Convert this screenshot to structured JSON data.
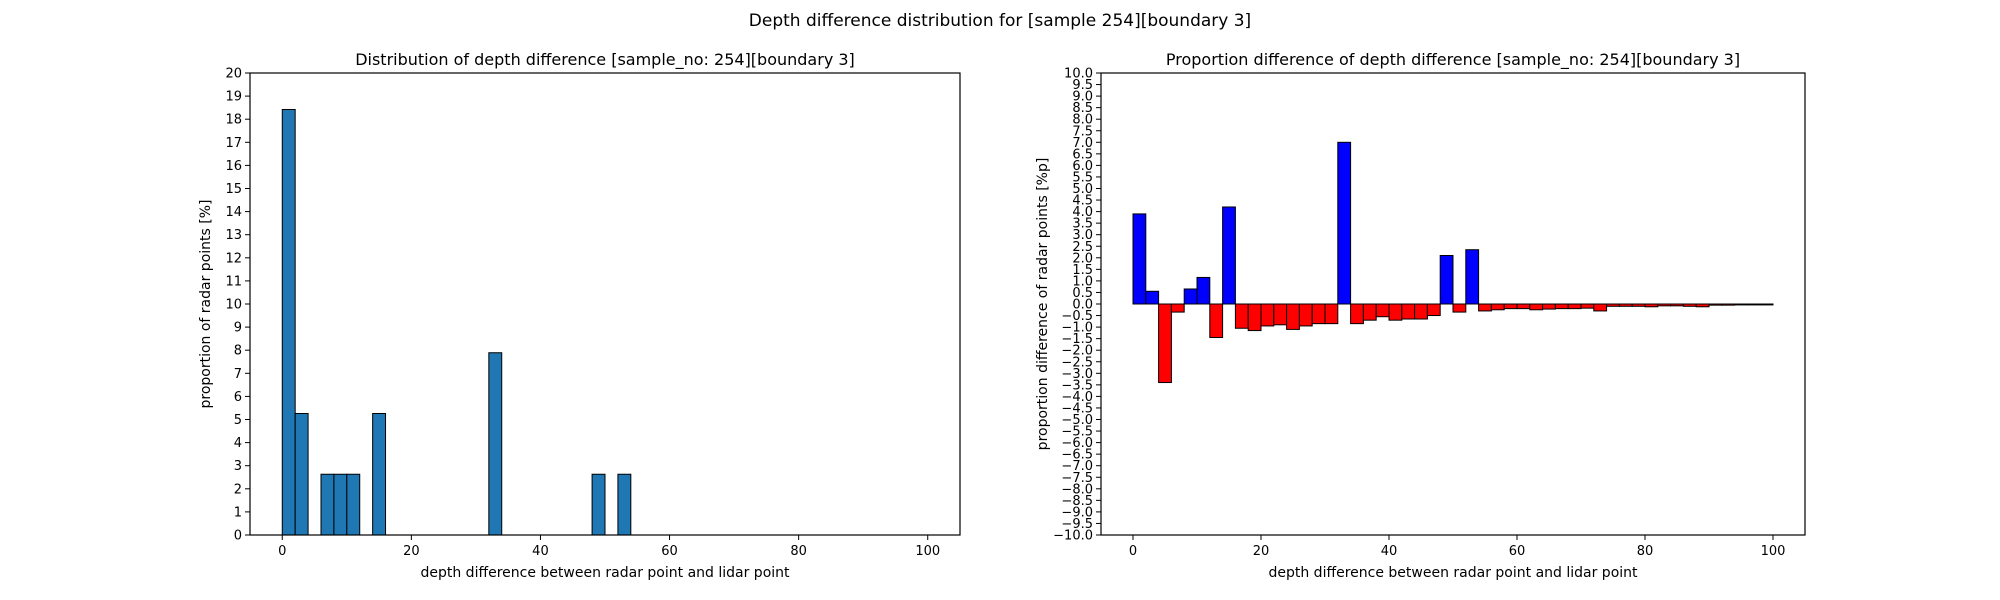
{
  "suptitle": "Depth difference distribution for [sample 254][boundary 3]",
  "chart_data": [
    {
      "type": "bar",
      "title": "Distribution of depth difference [sample_no: 254][boundary 3]",
      "xlabel": "depth difference between radar point and lidar point",
      "ylabel": "proportion of radar points [%]",
      "xlim": [
        -5,
        105
      ],
      "ylim": [
        0,
        20
      ],
      "xticks": [
        0,
        20,
        40,
        60,
        80,
        100
      ],
      "yticks": [
        0,
        1,
        2,
        3,
        4,
        5,
        6,
        7,
        8,
        9,
        10,
        11,
        12,
        13,
        14,
        15,
        16,
        17,
        18,
        19,
        20
      ],
      "bar_width": 2,
      "bar_color": "#1f77b4",
      "x": [
        1,
        3,
        7,
        9,
        11,
        15,
        33,
        49,
        53
      ],
      "values": [
        18.42,
        5.26,
        2.63,
        2.63,
        2.63,
        5.26,
        7.89,
        2.63,
        2.63
      ]
    },
    {
      "type": "bar",
      "title": "Proportion difference of depth difference [sample_no: 254][boundary 3]",
      "xlabel": "depth difference between radar point and lidar point",
      "ylabel": "proportion difference of radar points [%p]",
      "xlim": [
        -5,
        105
      ],
      "ylim": [
        -10,
        10
      ],
      "xticks": [
        0,
        20,
        40,
        60,
        80,
        100
      ],
      "yticks": [
        -10,
        -9.5,
        -9,
        -8.5,
        -8,
        -7.5,
        -7,
        -6.5,
        -6,
        -5.5,
        -5,
        -4.5,
        -4,
        -3.5,
        -3,
        -2.5,
        -2,
        -1.5,
        -1,
        -0.5,
        0,
        0.5,
        1,
        1.5,
        2,
        2.5,
        3,
        3.5,
        4,
        4.5,
        5,
        5.5,
        6,
        6.5,
        7,
        7.5,
        8,
        8.5,
        9,
        9.5,
        10
      ],
      "bar_width": 2,
      "positive_color": "#0000ff",
      "negative_color": "#ff0000",
      "x": [
        1,
        3,
        5,
        7,
        9,
        11,
        13,
        15,
        17,
        19,
        21,
        23,
        25,
        27,
        29,
        31,
        33,
        35,
        37,
        39,
        41,
        43,
        45,
        47,
        49,
        51,
        53,
        55,
        57,
        59,
        61,
        63,
        65,
        67,
        69,
        71,
        73,
        75,
        77,
        79,
        81,
        83,
        85,
        87,
        89,
        91,
        93,
        95,
        97,
        99
      ],
      "values": [
        3.9,
        0.55,
        -3.4,
        -0.35,
        0.65,
        1.15,
        -1.45,
        4.2,
        -1.05,
        -1.15,
        -0.95,
        -0.9,
        -1.1,
        -0.95,
        -0.85,
        -0.85,
        7.0,
        -0.85,
        -0.7,
        -0.55,
        -0.7,
        -0.65,
        -0.65,
        -0.5,
        2.1,
        -0.35,
        2.35,
        -0.3,
        -0.25,
        -0.2,
        -0.2,
        -0.25,
        -0.22,
        -0.2,
        -0.2,
        -0.18,
        -0.3,
        -0.1,
        -0.1,
        -0.1,
        -0.12,
        -0.08,
        -0.08,
        -0.1,
        -0.12,
        -0.05,
        -0.05,
        -0.04,
        -0.04,
        -0.04
      ]
    }
  ]
}
